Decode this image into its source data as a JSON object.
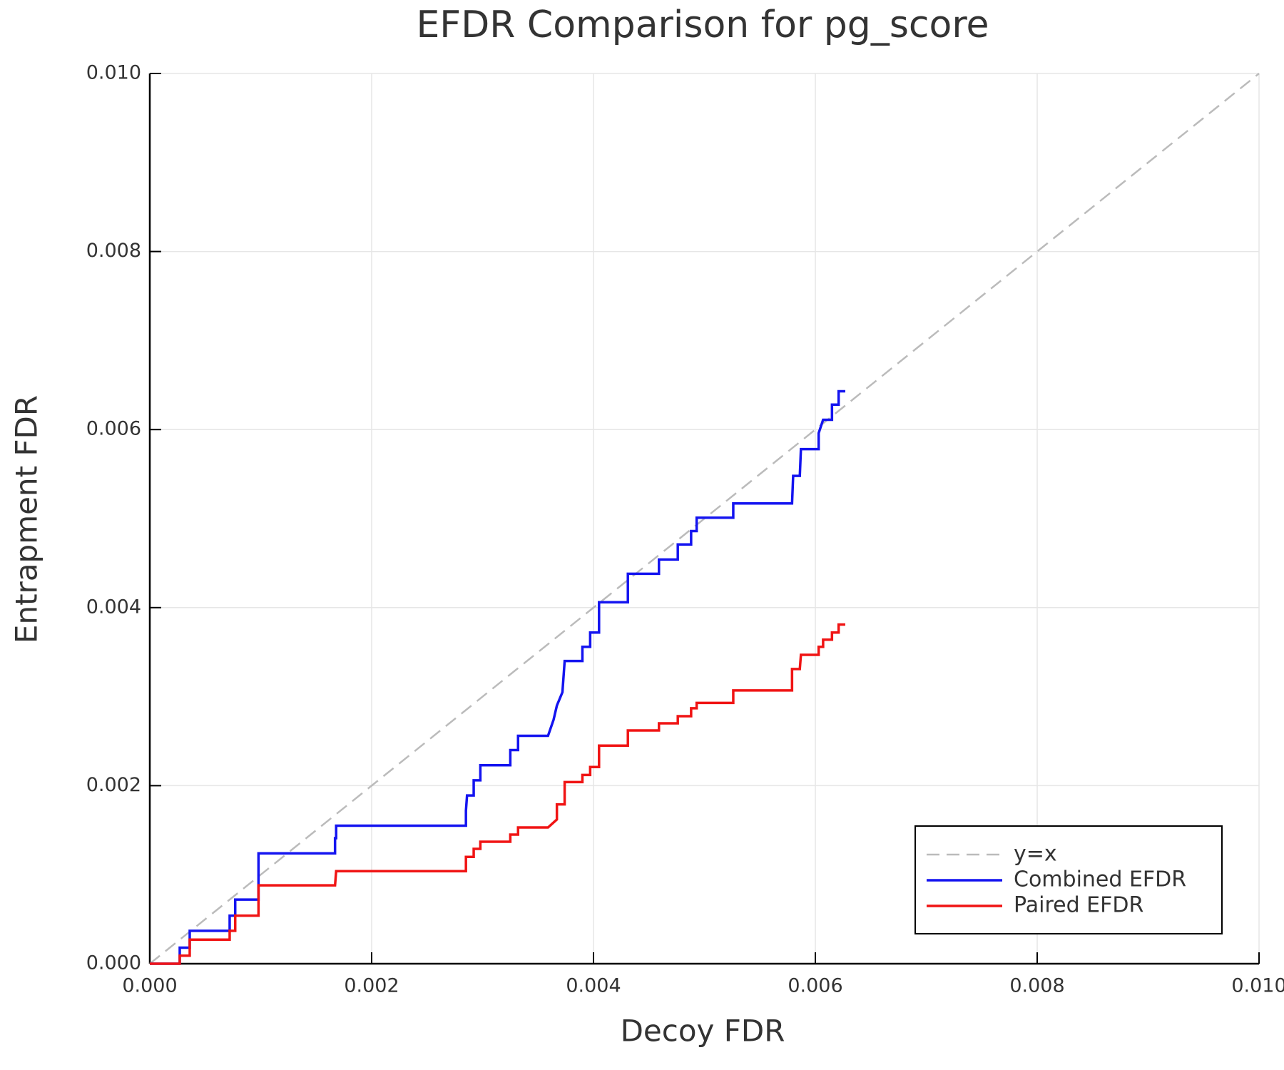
{
  "chart_data": {
    "type": "line",
    "title": "EFDR Comparison for pg_score",
    "x_label": "Decoy FDR",
    "y_label": "Entrapment FDR",
    "xlim": [
      0,
      0.01
    ],
    "ylim": [
      0,
      0.01
    ],
    "xticks": [
      {
        "value": 0,
        "label": "0.000"
      },
      {
        "value": 0.002,
        "label": "0.002"
      },
      {
        "value": 0.004,
        "label": "0.004"
      },
      {
        "value": 0.006,
        "label": "0.006"
      },
      {
        "value": 0.008,
        "label": "0.008"
      },
      {
        "value": 0.01,
        "label": "0.010"
      }
    ],
    "yticks": [
      {
        "value": 0,
        "label": "0.000"
      },
      {
        "value": 0.002,
        "label": "0.002"
      },
      {
        "value": 0.004,
        "label": "0.004"
      },
      {
        "value": 0.006,
        "label": "0.006"
      },
      {
        "value": 0.008,
        "label": "0.008"
      },
      {
        "value": 0.01,
        "label": "0.010"
      }
    ],
    "grid": true,
    "legend": "bottom-right",
    "series": [
      {
        "name": "y=x",
        "color": "#bbbbbb",
        "dashed": true,
        "x": [
          0,
          0.01
        ],
        "values": [
          0,
          0.01
        ]
      },
      {
        "name": "Combined EFDR",
        "color": "#1414f0",
        "dashed": false,
        "x": [
          0,
          0.00027,
          0.00027,
          0.00036,
          0.00036,
          0.00072,
          0.00072,
          0.00077,
          0.00077,
          0.00098,
          0.00098,
          0.00167,
          0.00167,
          0.00168,
          0.00168,
          0.00285,
          0.00285,
          0.00286,
          0.00292,
          0.00292,
          0.00298,
          0.00298,
          0.00325,
          0.00325,
          0.00332,
          0.00332,
          0.00359,
          0.00364,
          0.00367,
          0.00372,
          0.00374,
          0.0039,
          0.0039,
          0.00397,
          0.00397,
          0.00405,
          0.00405,
          0.00431,
          0.00431,
          0.00459,
          0.00459,
          0.00476,
          0.00476,
          0.00488,
          0.00488,
          0.00493,
          0.00493,
          0.00526,
          0.00526,
          0.00579,
          0.0058,
          0.00586,
          0.00587,
          0.00603,
          0.00603,
          0.00607,
          0.00615,
          0.00615,
          0.00621,
          0.00621,
          0.00627
        ],
        "values": [
          0,
          0,
          0.00018,
          0.00018,
          0.00037,
          0.00037,
          0.00054,
          0.00054,
          0.00072,
          0.00072,
          0.00124,
          0.00124,
          0.00141,
          0.00141,
          0.00155,
          0.00155,
          0.00172,
          0.00189,
          0.00189,
          0.00206,
          0.00206,
          0.00223,
          0.00223,
          0.0024,
          0.0024,
          0.00256,
          0.00256,
          0.00274,
          0.0029,
          0.00305,
          0.0034,
          0.0034,
          0.00356,
          0.00356,
          0.00372,
          0.00372,
          0.00406,
          0.00406,
          0.00438,
          0.00438,
          0.00454,
          0.00454,
          0.00471,
          0.00471,
          0.00486,
          0.00486,
          0.00501,
          0.00501,
          0.00517,
          0.00517,
          0.00548,
          0.00548,
          0.00578,
          0.00578,
          0.00596,
          0.00611,
          0.00611,
          0.00628,
          0.00628,
          0.00643,
          0.00643
        ]
      },
      {
        "name": "Paired EFDR",
        "color": "#f01414",
        "dashed": false,
        "x": [
          0,
          0.00027,
          0.00027,
          0.00036,
          0.00036,
          0.00072,
          0.00072,
          0.00077,
          0.00077,
          0.00098,
          0.00098,
          0.00167,
          0.00168,
          0.00285,
          0.00285,
          0.00292,
          0.00292,
          0.00298,
          0.00298,
          0.00325,
          0.00325,
          0.00332,
          0.00332,
          0.00359,
          0.00367,
          0.00367,
          0.00374,
          0.00374,
          0.0039,
          0.0039,
          0.00397,
          0.00397,
          0.00405,
          0.00405,
          0.00431,
          0.00431,
          0.00459,
          0.00459,
          0.00476,
          0.00476,
          0.00488,
          0.00488,
          0.00493,
          0.00493,
          0.00526,
          0.00526,
          0.00579,
          0.00579,
          0.00586,
          0.00587,
          0.00603,
          0.00603,
          0.00607,
          0.00607,
          0.00615,
          0.00615,
          0.00621,
          0.00621,
          0.00627
        ],
        "values": [
          0,
          0,
          9e-05,
          9e-05,
          0.00027,
          0.00027,
          0.00037,
          0.00037,
          0.00054,
          0.00054,
          0.00088,
          0.00088,
          0.00104,
          0.00104,
          0.0012,
          0.0012,
          0.00129,
          0.00129,
          0.00137,
          0.00137,
          0.00145,
          0.00145,
          0.00153,
          0.00153,
          0.00162,
          0.00179,
          0.00179,
          0.00204,
          0.00204,
          0.00212,
          0.00212,
          0.00221,
          0.00221,
          0.00245,
          0.00245,
          0.00262,
          0.00262,
          0.0027,
          0.0027,
          0.00278,
          0.00278,
          0.00287,
          0.00287,
          0.00293,
          0.00293,
          0.00307,
          0.00307,
          0.00331,
          0.00331,
          0.00347,
          0.00347,
          0.00356,
          0.00356,
          0.00364,
          0.00364,
          0.00372,
          0.00372,
          0.00381,
          0.00381
        ]
      }
    ]
  }
}
